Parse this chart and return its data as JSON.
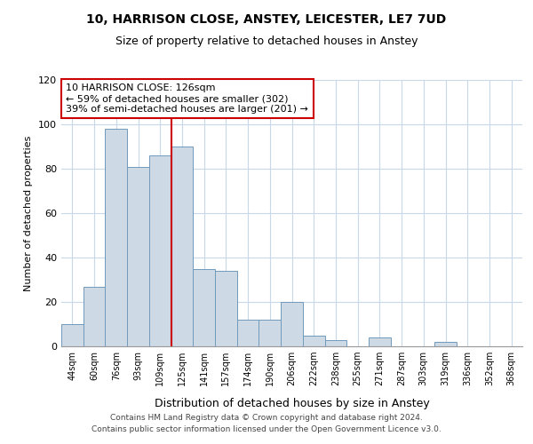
{
  "title": "10, HARRISON CLOSE, ANSTEY, LEICESTER, LE7 7UD",
  "subtitle": "Size of property relative to detached houses in Anstey",
  "xlabel": "Distribution of detached houses by size in Anstey",
  "ylabel": "Number of detached properties",
  "bar_labels": [
    "44sqm",
    "60sqm",
    "76sqm",
    "93sqm",
    "109sqm",
    "125sqm",
    "141sqm",
    "157sqm",
    "174sqm",
    "190sqm",
    "206sqm",
    "222sqm",
    "238sqm",
    "255sqm",
    "271sqm",
    "287sqm",
    "303sqm",
    "319sqm",
    "336sqm",
    "352sqm",
    "368sqm"
  ],
  "bar_values": [
    10,
    27,
    98,
    81,
    86,
    90,
    35,
    34,
    12,
    12,
    20,
    5,
    3,
    0,
    4,
    0,
    0,
    2,
    0,
    0,
    0
  ],
  "property_line_index": 5,
  "annotation_title": "10 HARRISON CLOSE: 126sqm",
  "annotation_line1": "← 59% of detached houses are smaller (302)",
  "annotation_line2": "39% of semi-detached houses are larger (201) →",
  "bar_color": "#cdd9e5",
  "bar_edge_color": "#7099bb",
  "property_line_color": "#cc0000",
  "annotation_box_edge_color": "#cc0000",
  "annotation_box_face_color": "#ffffff",
  "grid_color": "#c8d8e8",
  "ylim": [
    0,
    120
  ],
  "yticks": [
    0,
    20,
    40,
    60,
    80,
    100,
    120
  ],
  "footer_line1": "Contains HM Land Registry data © Crown copyright and database right 2024.",
  "footer_line2": "Contains public sector information licensed under the Open Government Licence v3.0."
}
